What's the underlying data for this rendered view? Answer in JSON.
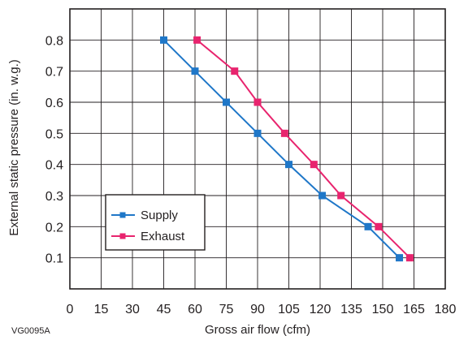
{
  "figure_code": "VG0095A",
  "colors": {
    "supply": "#1f77c8",
    "exhaust": "#e8246e",
    "grid": "#231f20"
  },
  "chart_data": {
    "type": "line",
    "xlabel": "Gross air flow (cfm)",
    "ylabel": "External static pressure (in. w.g.)",
    "xlim": [
      0,
      180
    ],
    "ylim": [
      0,
      0.9
    ],
    "xticks": [
      0,
      15,
      30,
      45,
      60,
      75,
      90,
      105,
      120,
      135,
      150,
      165,
      180
    ],
    "yticks": [
      0.1,
      0.2,
      0.3,
      0.4,
      0.5,
      0.6,
      0.7,
      0.8
    ],
    "grid": true,
    "legend_position": "bottom-left",
    "series": [
      {
        "name": "Supply",
        "color": "#1f77c8",
        "x": [
          45,
          60,
          75,
          90,
          105,
          121,
          143,
          158
        ],
        "y": [
          0.8,
          0.7,
          0.6,
          0.5,
          0.4,
          0.3,
          0.2,
          0.1
        ]
      },
      {
        "name": "Exhaust",
        "color": "#e8246e",
        "x": [
          61,
          79,
          90,
          103,
          117,
          130,
          148,
          163
        ],
        "y": [
          0.8,
          0.7,
          0.6,
          0.5,
          0.4,
          0.3,
          0.2,
          0.1
        ]
      }
    ]
  }
}
